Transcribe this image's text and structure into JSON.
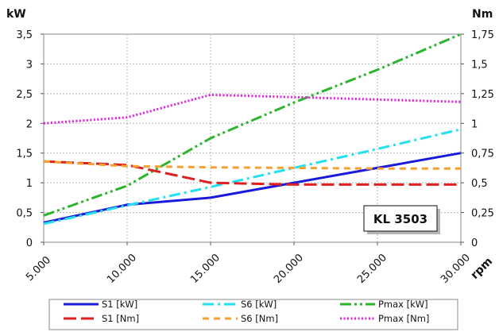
{
  "chart_data": {
    "type": "line",
    "x_label": "rpm",
    "y_left_label": "kW",
    "y_right_label": "Nm",
    "x_ticks": [
      "5.000",
      "10.000",
      "15.000",
      "20.000",
      "25.000",
      "30.000"
    ],
    "y_left_ticks": [
      "0",
      "0,5",
      "1",
      "1,5",
      "2",
      "2,5",
      "3",
      "3,5"
    ],
    "y_right_ticks": [
      "0",
      "0,25",
      "0,5",
      "0,75",
      "1",
      "1,25",
      "1,5",
      "1,75"
    ],
    "x_range": [
      5000,
      30000
    ],
    "y_left_range": [
      0,
      3.5
    ],
    "y_right_range": [
      0,
      1.75
    ],
    "grid": true,
    "badge": "KL 3503",
    "series": [
      {
        "name": "S1 [kW]",
        "axis": "left",
        "color": "#1a1adc",
        "dash": "solid",
        "x": [
          5000,
          10000,
          15000,
          20000,
          25000,
          30000
        ],
        "y": [
          0.33,
          0.63,
          0.75,
          1.0,
          1.25,
          1.5
        ]
      },
      {
        "name": "S6 [kW]",
        "axis": "left",
        "color": "#22e0f0",
        "dash": "dashdot",
        "x": [
          5000,
          10000,
          15000,
          20000,
          25000,
          30000
        ],
        "y": [
          0.31,
          0.62,
          0.93,
          1.25,
          1.57,
          1.9
        ]
      },
      {
        "name": "Pmax [kW]",
        "axis": "left",
        "color": "#2bb52b",
        "dash": "dashdotdot",
        "x": [
          5000,
          10000,
          15000,
          20000,
          25000,
          30000
        ],
        "y": [
          0.45,
          0.95,
          1.75,
          2.35,
          2.9,
          3.5
        ]
      },
      {
        "name": "S1 [Nm]",
        "axis": "right",
        "color": "#e02020",
        "dash": "longdash",
        "x": [
          5000,
          10000,
          15000,
          20000,
          25000,
          30000
        ],
        "y": [
          0.68,
          0.65,
          0.5,
          0.485,
          0.485,
          0.485
        ]
      },
      {
        "name": "S6 [Nm]",
        "axis": "right",
        "color": "#f5a030",
        "dash": "dash",
        "x": [
          5000,
          10000,
          15000,
          20000,
          25000,
          30000
        ],
        "y": [
          0.68,
          0.64,
          0.63,
          0.625,
          0.62,
          0.62
        ]
      },
      {
        "name": "Pmax [Nm]",
        "axis": "right",
        "color": "#e020e0",
        "dash": "dot",
        "x": [
          5000,
          10000,
          15000,
          20000,
          25000,
          30000
        ],
        "y": [
          1.0,
          1.05,
          1.24,
          1.22,
          1.2,
          1.18
        ]
      }
    ],
    "legend": {
      "placement": "bottom",
      "rows": [
        [
          "S1 [kW]",
          "S6 [kW]",
          "Pmax [kW]"
        ],
        [
          "S1 [Nm]",
          "S6 [Nm]",
          "Pmax [Nm]"
        ]
      ]
    }
  }
}
